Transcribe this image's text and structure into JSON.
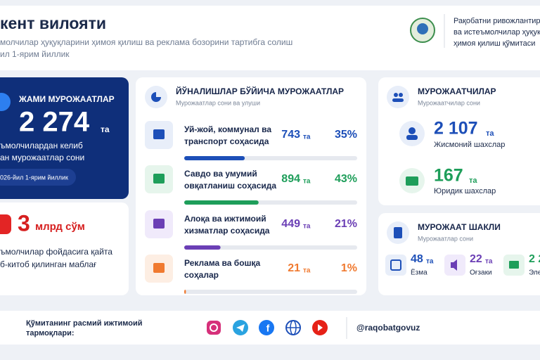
{
  "header": {
    "title": "кент вилояти",
    "subtitle_lines": [
      "молчилар ҳуқуқларини ҳимоя қилиш ва реклама бозорини тартибга солиш",
      "ил 1-ярим йиллик"
    ]
  },
  "organization": {
    "name_lines": [
      "Рақобатни ривожлантири",
      "ва истеъмолчилар ҳуқуқлар",
      "ҳимоя қилиш қўмитаси"
    ]
  },
  "total_card": {
    "title": "ЖАМИ МУРОЖААТЛАР",
    "value": "2 274",
    "unit": "та",
    "description_lines": [
      "ъмолчилардан келиб",
      "ан мурожаатлар сони"
    ],
    "period": "026-йил 1-ярим йиллик"
  },
  "refund_card": {
    "value": 3,
    "unit": "млрд сўм",
    "description_lines": [
      "ъмолчилар фойдасига қайта",
      "б-китоб қилинган маблағ"
    ]
  },
  "directions": {
    "title": "ЙЎНАЛИШЛАР БЎЙИЧА МУРОЖААТЛАР",
    "subtitle": "Мурожаатлар сони ва улуши",
    "items": [
      {
        "label_lines": [
          "Уй-жой, коммунал ва",
          "транспорт соҳасида"
        ],
        "count": 743,
        "unit": "та",
        "percent": 35,
        "percent_label": "35%"
      },
      {
        "label_lines": [
          "Савдо ва умумий",
          "овқатланиш соҳасида"
        ],
        "count": 894,
        "unit": "та",
        "percent": 43,
        "percent_label": "43%"
      },
      {
        "label_lines": [
          "Алоқа ва ижтимоий",
          "хизматлар соҳасида"
        ],
        "count": 449,
        "unit": "та",
        "percent": 21,
        "percent_label": "21%"
      },
      {
        "label_lines": [
          "Реклама ва бошқа",
          "соҳалар"
        ],
        "count": 21,
        "unit": "та",
        "percent": 1,
        "percent_label": "1%"
      }
    ]
  },
  "applicants": {
    "title": "МУРОЖААТЧИЛАР",
    "subtitle": "Мурожаатчилар сони",
    "items": [
      {
        "value": "2 107",
        "unit": "та",
        "label": "Жисмоний шахслар"
      },
      {
        "value": 167,
        "unit": "та",
        "label": "Юридик шахслар"
      }
    ]
  },
  "forms": {
    "title": "МУРОЖААТ ШАКЛИ",
    "subtitle": "Мурожаатлар сони",
    "items": [
      {
        "value": 48,
        "unit": "та",
        "label": "Ёзма"
      },
      {
        "value": 22,
        "unit": "та",
        "label": "Оғзаки"
      },
      {
        "value": "2 2",
        "label": "Эле"
      }
    ]
  },
  "footer": {
    "social_lines": [
      "Қўмитанинг расмий ижтимоий",
      "тармоқлари:"
    ],
    "handle": "@raqobatgovuz"
  }
}
